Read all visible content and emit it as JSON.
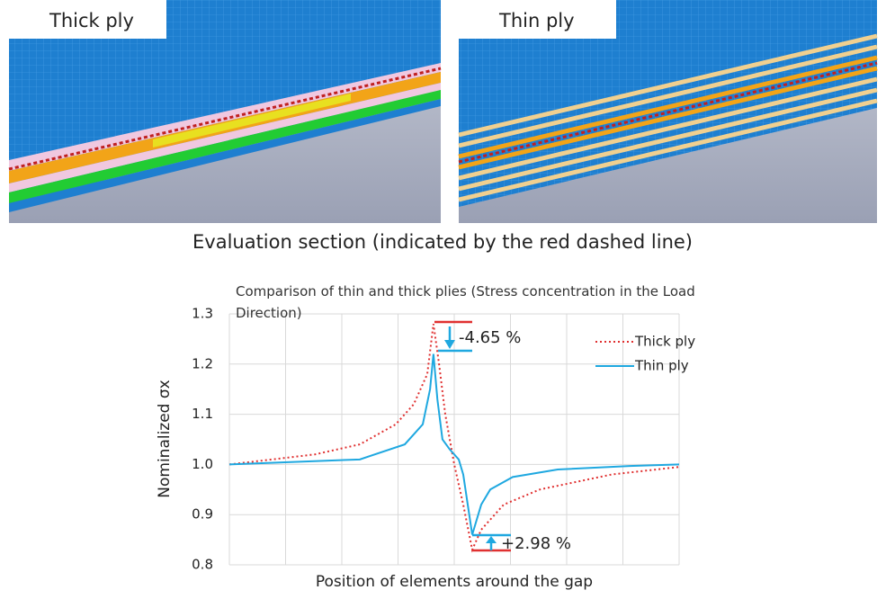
{
  "panels": [
    {
      "label": "Thick ply"
    },
    {
      "label": "Thin ply"
    }
  ],
  "caption": "Evaluation section (indicated by the red dashed line)",
  "chart_data": {
    "type": "line",
    "title": "Comparison of thin and thick plies (Stress concentration in the Load Direction)",
    "x_label": "Position of elements around the gap",
    "y_label": "Nominalized σx",
    "xlim": [
      0,
      8
    ],
    "ylim": [
      0.8,
      1.3
    ],
    "yticks": [
      {
        "value": 0.8,
        "label": "0.8"
      },
      {
        "value": 0.9,
        "label": "0.9"
      },
      {
        "value": 1.0,
        "label": "1.0"
      },
      {
        "value": 1.1,
        "label": "1.1"
      },
      {
        "value": 1.2,
        "label": "1.2"
      },
      {
        "value": 1.3,
        "label": "1.3"
      }
    ],
    "grid": true,
    "legend": "upper right",
    "series": [
      {
        "name": "Thick ply",
        "color": "#e03030",
        "dash": true,
        "x": [
          0,
          1.52,
          2.32,
          2.96,
          3.28,
          3.52,
          3.63,
          3.73,
          3.84,
          4.0,
          4.16,
          4.32,
          4.48,
          4.88,
          5.52,
          6.8,
          8
        ],
        "values": [
          1.0,
          1.02,
          1.04,
          1.08,
          1.12,
          1.18,
          1.28,
          1.2,
          1.1,
          1.0,
          0.92,
          0.83,
          0.87,
          0.92,
          0.95,
          0.98,
          0.995
        ]
      },
      {
        "name": "Thin ply",
        "color": "#1fa8e0",
        "dash": false,
        "x": [
          0,
          2.32,
          3.12,
          3.44,
          3.57,
          3.63,
          3.7,
          3.79,
          3.92,
          4.08,
          4.16,
          4.24,
          4.32,
          4.48,
          4.64,
          5.04,
          5.84,
          7.12,
          8
        ],
        "values": [
          1.0,
          1.01,
          1.04,
          1.08,
          1.15,
          1.22,
          1.13,
          1.05,
          1.03,
          1.01,
          0.98,
          0.92,
          0.86,
          0.92,
          0.95,
          0.975,
          0.99,
          0.997,
          1.0
        ]
      }
    ],
    "annotations": [
      "-4.65 %",
      "+2.98 %"
    ]
  }
}
